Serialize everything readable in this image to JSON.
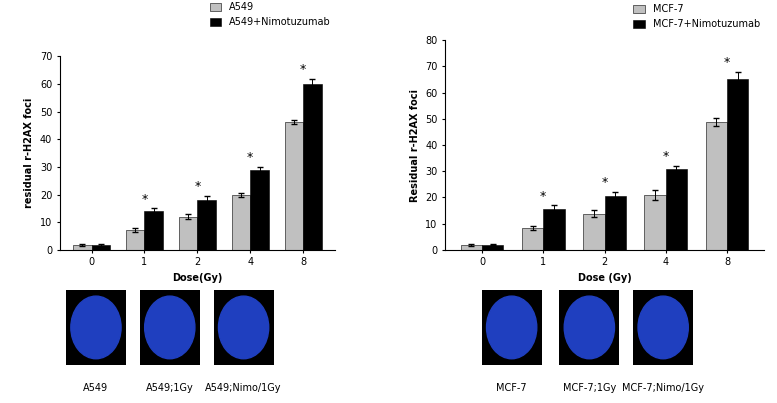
{
  "chart_data": [
    {
      "type": "bar",
      "x_label": "Dose(Gy)",
      "y_label": "residual r-H2AX foci",
      "categories": [
        "0",
        "1",
        "2",
        "4",
        "8"
      ],
      "series": [
        {
          "name": "A549",
          "color": "#c0c0c0",
          "values": [
            1.8,
            7.2,
            12.0,
            20.0,
            46.3
          ],
          "errors": [
            0.3,
            0.8,
            1.0,
            0.7,
            0.7
          ]
        },
        {
          "name": "A549+Nimotuzumab",
          "color": "#000000",
          "values": [
            1.8,
            14.0,
            18.0,
            29.0,
            60.0
          ],
          "errors": [
            0.3,
            1.0,
            1.5,
            1.0,
            2.0
          ]
        }
      ],
      "annotations": [
        null,
        "*",
        "*",
        "*",
        "*"
      ],
      "ylim": [
        0,
        70
      ],
      "yticks": [
        0,
        10,
        20,
        30,
        40,
        50,
        60,
        70
      ],
      "legend": "upper right",
      "image_captions": [
        "A549",
        "A549;1Gy",
        "A549;Nimo/1Gy"
      ]
    },
    {
      "type": "bar",
      "x_label": "Dose (Gy)",
      "y_label": "Residual r-H2AX foci",
      "categories": [
        "0",
        "1",
        "2",
        "4",
        "8"
      ],
      "series": [
        {
          "name": "MCF-7",
          "color": "#c0c0c0",
          "values": [
            1.8,
            8.3,
            13.8,
            21.0,
            48.8
          ],
          "errors": [
            0.3,
            0.8,
            1.3,
            1.8,
            1.5
          ]
        },
        {
          "name": "MCF-7+Nimotuzumab",
          "color": "#000000",
          "values": [
            2.0,
            15.5,
            20.5,
            31.0,
            65.3
          ],
          "errors": [
            0.3,
            1.5,
            1.5,
            1.0,
            2.5
          ]
        }
      ],
      "annotations": [
        null,
        "*",
        "*",
        "*",
        "*"
      ],
      "ylim": [
        0,
        80
      ],
      "yticks": [
        0,
        10,
        20,
        30,
        40,
        50,
        60,
        70,
        80
      ],
      "legend": "upper right",
      "image_captions": [
        "MCF-7",
        "MCF-7;1Gy",
        "MCF-7;Nimo/1Gy"
      ]
    }
  ]
}
